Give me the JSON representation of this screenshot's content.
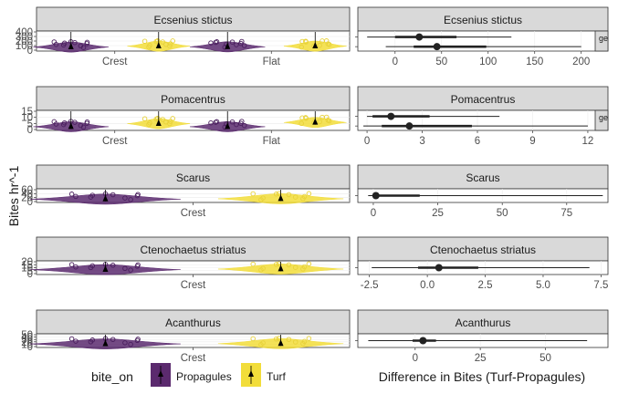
{
  "figure": {
    "ylabel": "Bites hr^-1",
    "xlabel_right": "Difference in Bites (Turf-Propagules)",
    "legend": {
      "title": "bite_on",
      "items": [
        {
          "label": "Propagules",
          "color": "#5b2a6e"
        },
        {
          "label": "Turf",
          "color": "#f2dd3a"
        }
      ]
    }
  },
  "chart_data": [
    {
      "type": "violin",
      "title": "Ecsenius stictus",
      "categories": [
        "Crest",
        "Flat"
      ],
      "y_ticks": [
        0,
        100,
        200,
        300,
        400
      ],
      "ylim": [
        0,
        400
      ],
      "series": [
        {
          "name": "Propagules",
          "medians": [
            20,
            25
          ]
        },
        {
          "name": "Turf",
          "medians": [
            40,
            40
          ]
        }
      ]
    },
    {
      "type": "forest",
      "title": "Ecsenius stictus",
      "x_ticks": [
        0,
        50,
        100,
        150,
        200
      ],
      "xlim": [
        -40,
        215
      ],
      "facet_label": "ge",
      "rows": [
        {
          "estimate": 26,
          "inner": [
            0,
            66
          ],
          "outer": [
            -30,
            125
          ]
        },
        {
          "estimate": 45,
          "inner": [
            20,
            98
          ],
          "outer": [
            -10,
            200
          ]
        }
      ]
    },
    {
      "type": "violin",
      "title": "Pomacentrus",
      "categories": [
        "Crest",
        "Flat"
      ],
      "y_ticks": [
        0,
        5,
        10,
        15
      ],
      "ylim": [
        0,
        15
      ],
      "series": [
        {
          "name": "Propagules",
          "medians": [
            0.5,
            0.5
          ]
        },
        {
          "name": "Turf",
          "medians": [
            3,
            4
          ]
        }
      ]
    },
    {
      "type": "forest",
      "title": "Pomacentrus",
      "x_ticks": [
        0,
        3,
        6,
        9,
        12
      ],
      "xlim": [
        -0.5,
        12.4
      ],
      "facet_label": "ge",
      "rows": [
        {
          "estimate": 1.3,
          "inner": [
            0.3,
            3.4
          ],
          "outer": [
            0,
            7.2
          ]
        },
        {
          "estimate": 2.3,
          "inner": [
            0.8,
            5.7
          ],
          "outer": [
            -0.2,
            12
          ]
        }
      ]
    },
    {
      "type": "violin",
      "title": "Scarus",
      "categories": [
        "Crest"
      ],
      "y_ticks": [
        0,
        20,
        40,
        60
      ],
      "ylim": [
        0,
        60
      ],
      "series": [
        {
          "name": "Propagules",
          "medians": [
            1
          ]
        },
        {
          "name": "Turf",
          "medians": [
            3
          ]
        }
      ]
    },
    {
      "type": "forest",
      "title": "Scarus",
      "x_ticks": [
        0,
        25,
        50,
        75
      ],
      "x_tick_labels": [
        "0",
        "25",
        "50",
        "75"
      ],
      "xlim": [
        -6,
        91
      ],
      "rows": [
        {
          "estimate": 1,
          "inner": [
            0,
            18
          ],
          "outer": [
            -2,
            89
          ]
        }
      ]
    },
    {
      "type": "violin",
      "title": "Ctenochaetus striatus",
      "categories": [
        "Crest"
      ],
      "y_ticks": [
        0,
        5,
        10,
        15,
        20
      ],
      "ylim": [
        0,
        20
      ],
      "series": [
        {
          "name": "Propagules",
          "medians": [
            3
          ]
        },
        {
          "name": "Turf",
          "medians": [
            4
          ]
        }
      ]
    },
    {
      "type": "forest",
      "title": "Ctenochaetus striatus",
      "x_ticks": [
        -2.5,
        0,
        2.5,
        5,
        7.5
      ],
      "x_tick_labels": [
        "-2.5",
        "0.0",
        "2.5",
        "5.0",
        "7.5"
      ],
      "xlim": [
        -3.0,
        7.8
      ],
      "rows": [
        {
          "estimate": 0.5,
          "inner": [
            -0.4,
            2.2
          ],
          "outer": [
            -2.4,
            7.0
          ]
        }
      ]
    },
    {
      "type": "violin",
      "title": "Acanthurus",
      "categories": [
        "Crest"
      ],
      "y_ticks": [
        0,
        10,
        20,
        30,
        40,
        50
      ],
      "ylim": [
        0,
        50
      ],
      "series": [
        {
          "name": "Propagules",
          "medians": [
            2
          ]
        },
        {
          "name": "Turf",
          "medians": [
            3
          ]
        }
      ]
    },
    {
      "type": "forest",
      "title": "Acanthurus",
      "x_ticks": [
        0,
        25,
        50
      ],
      "x_tick_labels": [
        "0",
        "25",
        "50"
      ],
      "xlim": [
        -22,
        74
      ],
      "rows": [
        {
          "estimate": 3,
          "inner": [
            -1,
            8
          ],
          "outer": [
            -18,
            66
          ]
        }
      ]
    }
  ]
}
